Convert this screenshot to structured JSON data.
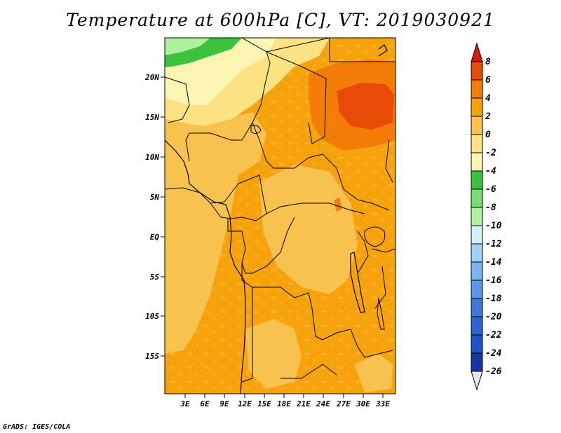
{
  "title": "Temperature at 600hPa [C], VT: 2019030921",
  "credit": "GrADS: IGES/COLA",
  "colors": {
    "c_minus26": "#0a0a78",
    "c_minus24": "#1436a8",
    "c_minus22": "#1e50c8",
    "c_minus20": "#2a64d6",
    "c_minus18": "#3c78e0",
    "c_minus16": "#5a96ea",
    "c_minus14": "#78b4f2",
    "c_minus12": "#a0d2f8",
    "c_minus10": "#d2f0fa",
    "c_minus8": "#aef2a0",
    "c_minus6": "#78dc6e",
    "c_minus4": "#3cc23c",
    "c_minus2": "#fcf5b4",
    "c_0": "#fce282",
    "c_2": "#f8c24e",
    "c_4": "#f6a20c",
    "c_6": "#f47c08",
    "c_8": "#ea4a08",
    "c_top": "#d01e10",
    "c_bottom": "#e8e4fa"
  },
  "map": {
    "lat_labels": [
      "20N",
      "15N",
      "10N",
      "5N",
      "EQ",
      "5S",
      "10S",
      "15S"
    ],
    "lon_labels": [
      "3E",
      "6E",
      "9E",
      "12E",
      "15E",
      "18E",
      "21E",
      "24E",
      "27E",
      "30E",
      "33E"
    ]
  },
  "colorbar": {
    "labels": [
      "8",
      "6",
      "4",
      "2",
      "0",
      "-2",
      "-4",
      "-6",
      "-8",
      "-10",
      "-12",
      "-14",
      "-16",
      "-18",
      "-20",
      "-22",
      "-24",
      "-26"
    ]
  }
}
